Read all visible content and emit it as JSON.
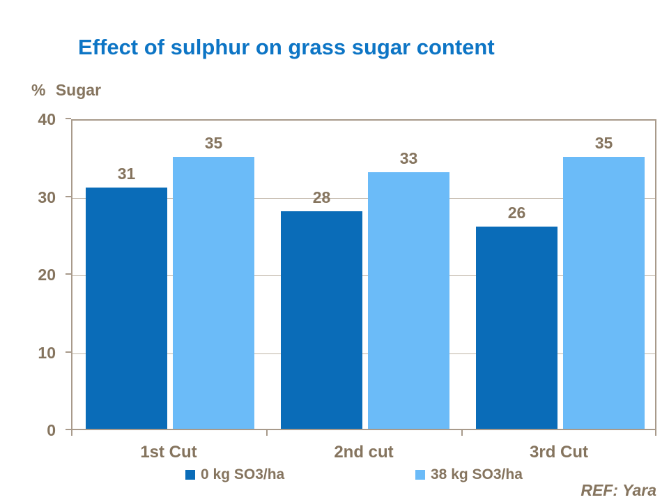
{
  "slide": {
    "title": "Effect of sulphur on grass sugar content",
    "ref_label": "REF: Yara"
  },
  "chart_data": {
    "type": "bar",
    "title": "Effect of sulphur on grass sugar content",
    "ylabel": "% Sugar",
    "xlabel": "",
    "categories": [
      "1st Cut",
      "2nd cut",
      "3rd Cut"
    ],
    "series": [
      {
        "name": "0 kg SO3/ha",
        "color": "#0A6CB8",
        "values": [
          31,
          28,
          26
        ]
      },
      {
        "name": "38 kg SO3/ha",
        "color": "#6BBBF8",
        "values": [
          35,
          33,
          35
        ]
      }
    ],
    "ylim": [
      0,
      40
    ],
    "ytick_step": 10,
    "yticks": [
      0,
      10,
      20,
      30,
      40
    ],
    "grid": "horizontal",
    "legend_position": "bottom",
    "data_labels": true
  },
  "colors": {
    "title_blue": "#0D75C5",
    "text_brown": "#85745E",
    "axis_frame": "#A89A8B",
    "gridline": "#BFB4A6",
    "background": "#FFFFFF"
  }
}
